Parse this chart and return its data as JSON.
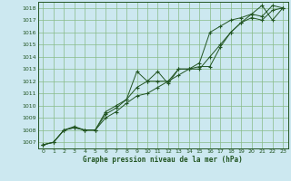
{
  "title": "Graphe pression niveau de la mer (hPa)",
  "bg_color": "#cce8f0",
  "grid_color": "#88bb88",
  "line_color": "#225522",
  "label_color": "#225522",
  "xlim": [
    -0.5,
    23.5
  ],
  "ylim": [
    1006.5,
    1018.5
  ],
  "yticks": [
    1007,
    1008,
    1009,
    1010,
    1011,
    1012,
    1013,
    1014,
    1015,
    1016,
    1017,
    1018
  ],
  "xticks": [
    0,
    1,
    2,
    3,
    4,
    5,
    6,
    7,
    8,
    9,
    10,
    11,
    12,
    13,
    14,
    15,
    16,
    17,
    18,
    19,
    20,
    21,
    22,
    23
  ],
  "series": [
    [
      1006.8,
      1007.0,
      1008.0,
      1008.2,
      1008.0,
      1008.0,
      1009.5,
      1010.0,
      1010.5,
      1012.8,
      1012.0,
      1012.8,
      1011.8,
      1013.0,
      1013.0,
      1013.0,
      1014.0,
      1015.0,
      1016.0,
      1016.8,
      1017.5,
      1018.2,
      1017.0,
      1018.0
    ],
    [
      1006.8,
      1007.0,
      1008.0,
      1008.2,
      1008.0,
      1008.0,
      1009.0,
      1009.5,
      1010.2,
      1010.8,
      1011.0,
      1011.5,
      1012.0,
      1012.5,
      1013.0,
      1013.2,
      1013.2,
      1014.8,
      1016.0,
      1016.8,
      1017.2,
      1017.0,
      1017.8,
      1018.0
    ],
    [
      1006.8,
      1007.0,
      1008.0,
      1008.3,
      1008.0,
      1008.0,
      1009.3,
      1009.8,
      1010.5,
      1011.5,
      1012.0,
      1012.0,
      1012.0,
      1013.0,
      1013.0,
      1013.5,
      1016.0,
      1016.5,
      1017.0,
      1017.2,
      1017.5,
      1017.3,
      1018.2,
      1018.0
    ]
  ]
}
